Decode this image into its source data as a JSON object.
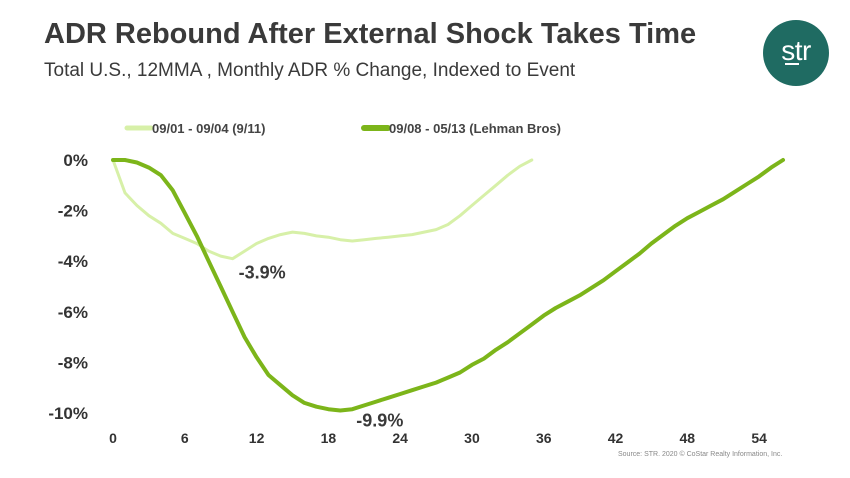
{
  "header": {
    "title": "ADR Rebound After External Shock Takes Time",
    "subtitle": "Total U.S., 12MMA , Monthly ADR % Change, Indexed to Event"
  },
  "logo": {
    "text": "str"
  },
  "source": "Source: STR. 2020 © CoStar Realty Information, Inc.",
  "colors": {
    "series_911": "#d7f0a8",
    "series_lehman": "#7cb51a",
    "axis_text": "#333333",
    "logo_bg": "#1f6b62"
  },
  "chart_data": {
    "type": "line",
    "title": "ADR Rebound After External Shock Takes Time",
    "subtitle": "Total U.S., 12MMA , Monthly ADR % Change, Indexed to Event",
    "xlabel": "",
    "ylabel": "",
    "xlim": [
      0,
      57
    ],
    "ylim": [
      -10,
      0
    ],
    "x_ticks": [
      0,
      6,
      12,
      18,
      24,
      30,
      36,
      42,
      48,
      54
    ],
    "y_ticks": [
      0,
      -2,
      -4,
      -6,
      -8,
      -10
    ],
    "y_tick_labels": [
      "0%",
      "-2%",
      "-4%",
      "-6%",
      "-8%",
      "-10%"
    ],
    "legend_position": "top",
    "grid": false,
    "series": [
      {
        "name": "09/01 - 09/04 (9/11)",
        "x": [
          0,
          1,
          2,
          3,
          4,
          5,
          6,
          7,
          8,
          9,
          10,
          11,
          12,
          13,
          14,
          15,
          16,
          17,
          18,
          19,
          20,
          21,
          22,
          23,
          24,
          25,
          26,
          27,
          28,
          29,
          30,
          31,
          32,
          33,
          34,
          35
        ],
        "values": [
          0,
          -1.3,
          -1.8,
          -2.2,
          -2.5,
          -2.9,
          -3.1,
          -3.3,
          -3.6,
          -3.8,
          -3.9,
          -3.6,
          -3.3,
          -3.1,
          -2.95,
          -2.85,
          -2.9,
          -3.0,
          -3.05,
          -3.15,
          -3.2,
          -3.15,
          -3.1,
          -3.05,
          -3.0,
          -2.95,
          -2.85,
          -2.75,
          -2.55,
          -2.2,
          -1.8,
          -1.4,
          -1.0,
          -0.6,
          -0.25,
          0
        ]
      },
      {
        "name": "09/08 - 05/13 (Lehman Bros)",
        "x": [
          0,
          1,
          2,
          3,
          4,
          5,
          6,
          7,
          8,
          9,
          10,
          11,
          12,
          13,
          14,
          15,
          16,
          17,
          18,
          19,
          20,
          21,
          22,
          23,
          24,
          25,
          26,
          27,
          28,
          29,
          30,
          31,
          32,
          33,
          34,
          35,
          36,
          37,
          38,
          39,
          40,
          41,
          42,
          43,
          44,
          45,
          46,
          47,
          48,
          49,
          50,
          51,
          52,
          53,
          54,
          55,
          56
        ],
        "values": [
          0,
          0,
          -0.1,
          -0.3,
          -0.6,
          -1.2,
          -2.1,
          -3.0,
          -4.0,
          -5.0,
          -6.0,
          -7.0,
          -7.8,
          -8.5,
          -8.9,
          -9.3,
          -9.6,
          -9.75,
          -9.85,
          -9.9,
          -9.85,
          -9.7,
          -9.55,
          -9.4,
          -9.25,
          -9.1,
          -8.95,
          -8.8,
          -8.6,
          -8.4,
          -8.1,
          -7.85,
          -7.5,
          -7.2,
          -6.85,
          -6.5,
          -6.15,
          -5.85,
          -5.6,
          -5.35,
          -5.05,
          -4.75,
          -4.4,
          -4.05,
          -3.7,
          -3.3,
          -2.95,
          -2.6,
          -2.3,
          -2.05,
          -1.8,
          -1.55,
          -1.25,
          -0.95,
          -0.65,
          -0.3,
          0
        ]
      }
    ],
    "annotations": [
      {
        "text": "-3.9%",
        "x": 10,
        "y": -3.9
      },
      {
        "text": "-9.9%",
        "x": 20,
        "y": -9.9
      }
    ]
  }
}
